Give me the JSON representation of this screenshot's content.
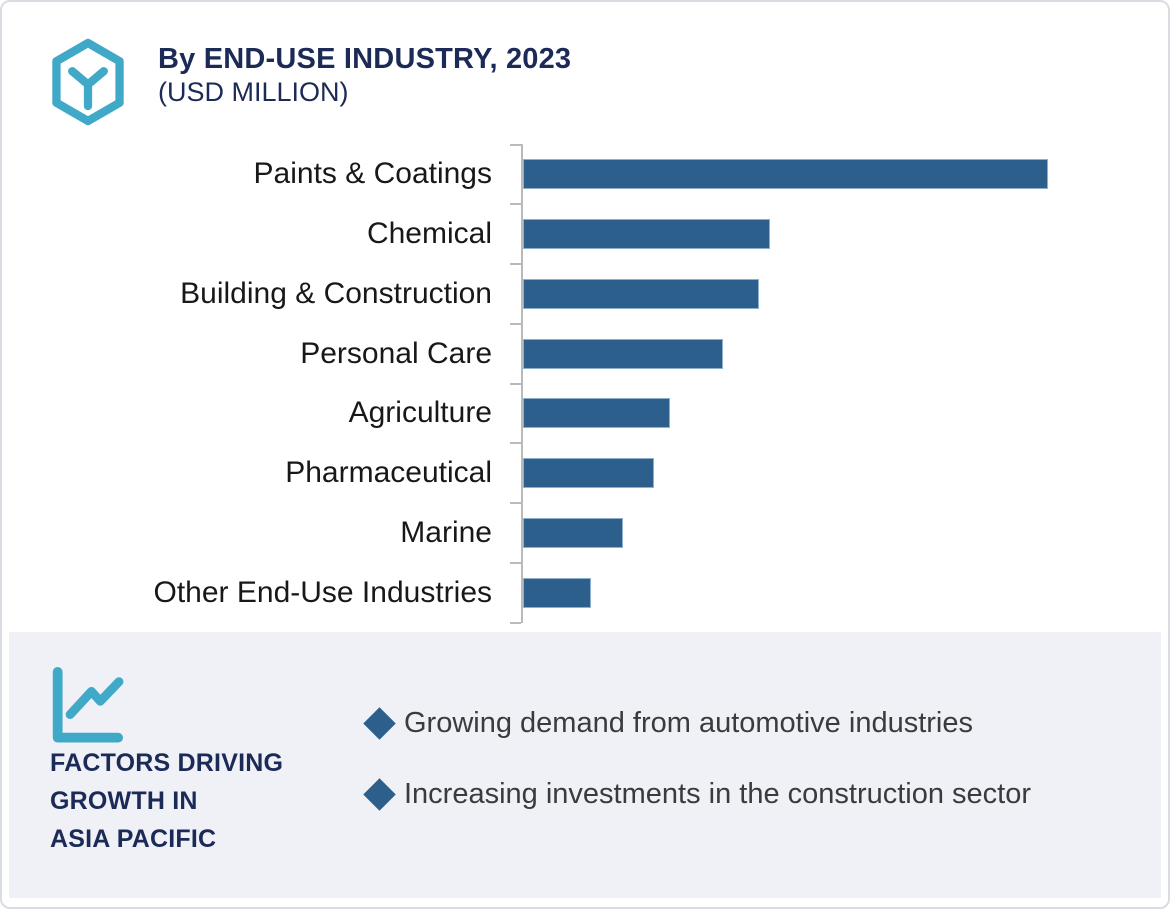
{
  "header": {
    "title": "By END-USE INDUSTRY, 2023",
    "subtitle": "(USD MILLION)",
    "logo_icon": "hexagon-y-logo-icon",
    "title_color": "#1b2a56",
    "logo_color": "#41a9c8"
  },
  "chart_data": {
    "type": "bar",
    "orientation": "horizontal",
    "title": "By END-USE INDUSTRY, 2023",
    "subtitle": "(USD MILLION)",
    "categories": [
      "Paints & Coatings",
      "Chemical",
      "Building & Construction",
      "Personal Care",
      "Agriculture",
      "Pharmaceutical",
      "Marine",
      "Other End-Use Industries"
    ],
    "values": [
      100,
      47,
      45,
      38,
      28,
      25,
      19,
      13
    ],
    "values_note": "relative bar lengths (% of longest bar); numeric value axis is not labeled in the figure",
    "bar_color": "#2d5f8d",
    "axis_color": "#b9babc",
    "gridlines": false,
    "value_labels_shown": false,
    "legend": null
  },
  "factors": {
    "icon": "line-chart-icon",
    "icon_color": "#41a9c8",
    "heading": "FACTORS DRIVING\nGROWTH IN\nASIA PACIFIC",
    "bullet_marker": "diamond-bullet-icon",
    "bullet_marker_color": "#2d5f8d",
    "bullets": [
      "Growing demand from automotive industries",
      "Increasing investments in the construction sector"
    ],
    "panel_background": "#eff1f6"
  }
}
